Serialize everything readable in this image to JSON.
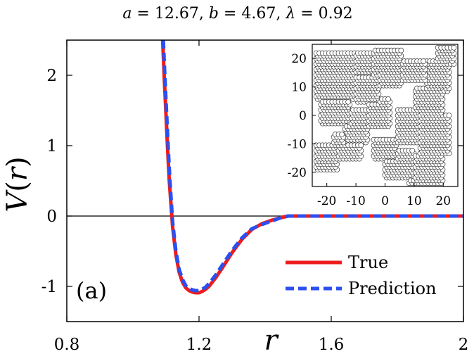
{
  "chart_data": [
    {
      "type": "line",
      "title": "a = 12.67, b = 4.67, λ = 0.92",
      "title_parts": {
        "a_sym": "a",
        "a_val": " = 12.67, ",
        "b_sym": "b",
        "b_val": " = 4.67, ",
        "l_sym": "λ",
        "l_val": " = 0.92"
      },
      "xlabel": "r",
      "ylabel": "V(r)",
      "ylabel_parts": {
        "v": "V",
        "open": "(",
        "r": "r",
        "close": ")"
      },
      "xlim": [
        0.8,
        2.0
      ],
      "ylim": [
        -1.5,
        2.5
      ],
      "x_ticks": [
        0.8,
        1.2,
        1.6,
        2.0
      ],
      "x_tick_labels": [
        "0.8",
        "1.2",
        "1.6",
        "2"
      ],
      "y_ticks": [
        -1,
        0,
        1,
        2
      ],
      "y_tick_labels": [
        "-1",
        "0",
        "1",
        "2"
      ],
      "zero_line": true,
      "grid": false,
      "panel_label": "(a)",
      "legend_position": "bottom-right",
      "series": [
        {
          "name": "True",
          "color": "#ee1c1c",
          "style": "solid",
          "x": [
            1.09,
            1.095,
            1.1,
            1.105,
            1.11,
            1.12,
            1.13,
            1.14,
            1.15,
            1.16,
            1.17,
            1.18,
            1.19,
            1.2,
            1.21,
            1.22,
            1.23,
            1.25,
            1.27,
            1.3,
            1.33,
            1.36,
            1.39,
            1.42,
            1.45,
            1.47,
            1.5,
            1.6,
            1.7,
            1.8,
            1.9,
            2.0
          ],
          "y": [
            2.5,
            1.95,
            1.45,
            0.95,
            0.5,
            -0.15,
            -0.55,
            -0.8,
            -0.94,
            -1.02,
            -1.06,
            -1.08,
            -1.09,
            -1.09,
            -1.07,
            -1.04,
            -1.0,
            -0.88,
            -0.74,
            -0.52,
            -0.33,
            -0.19,
            -0.11,
            -0.06,
            -0.02,
            0.0,
            0.0,
            0.0,
            0.0,
            0.0,
            0.0,
            0.0
          ]
        },
        {
          "name": "Prediction",
          "color": "#2b4ff0",
          "style": "dashed",
          "x": [
            1.092,
            1.097,
            1.102,
            1.107,
            1.112,
            1.12,
            1.13,
            1.14,
            1.15,
            1.16,
            1.17,
            1.18,
            1.19,
            1.2,
            1.21,
            1.22,
            1.23,
            1.25,
            1.27,
            1.3,
            1.33,
            1.36,
            1.39,
            1.42,
            1.45,
            1.47,
            1.5,
            1.6,
            1.7,
            1.8,
            1.9,
            2.0
          ],
          "y": [
            2.5,
            1.95,
            1.45,
            0.95,
            0.5,
            -0.08,
            -0.5,
            -0.76,
            -0.9,
            -0.99,
            -1.03,
            -1.05,
            -1.06,
            -1.06,
            -1.04,
            -1.01,
            -0.96,
            -0.84,
            -0.7,
            -0.49,
            -0.31,
            -0.18,
            -0.12,
            -0.07,
            -0.02,
            0.0,
            0.0,
            0.0,
            0.0,
            0.0,
            0.0,
            0.0
          ]
        }
      ]
    },
    {
      "type": "scatter",
      "xlim": [
        -25,
        25
      ],
      "ylim": [
        -25,
        25
      ],
      "x_ticks": [
        -20,
        -10,
        0,
        10,
        20
      ],
      "x_tick_labels": [
        "-20",
        "-10",
        "0",
        "10",
        "20"
      ],
      "y_ticks": [
        -20,
        -10,
        0,
        10,
        20
      ],
      "y_tick_labels": [
        "-20",
        "-10",
        "0",
        "10",
        "20"
      ],
      "particle_radius": 0.55,
      "lattice_spacing": 1.1,
      "clusters": [
        {
          "x": [
            -24,
            -10
          ],
          "y": [
            5,
            22
          ]
        },
        {
          "x": [
            -22,
            -12
          ],
          "y": [
            -3,
            8
          ]
        },
        {
          "x": [
            -14,
            -4
          ],
          "y": [
            14,
            22
          ]
        },
        {
          "x": [
            -10,
            -2
          ],
          "y": [
            4,
            16
          ]
        },
        {
          "x": [
            -4,
            6
          ],
          "y": [
            10,
            23
          ]
        },
        {
          "x": [
            -14,
            -6
          ],
          "y": [
            -10,
            2
          ]
        },
        {
          "x": [
            -6,
            2
          ],
          "y": [
            -4,
            6
          ]
        },
        {
          "x": [
            -24,
            -16
          ],
          "y": [
            -20,
            -10
          ]
        },
        {
          "x": [
            -18,
            -8
          ],
          "y": [
            -16,
            -6
          ]
        },
        {
          "x": [
            -4,
            4
          ],
          "y": [
            -16,
            -8
          ]
        },
        {
          "x": [
            0,
            10
          ],
          "y": [
            -22,
            -12
          ]
        },
        {
          "x": [
            4,
            12
          ],
          "y": [
            -10,
            2
          ]
        },
        {
          "x": [
            8,
            20
          ],
          "y": [
            -24,
            -14
          ]
        },
        {
          "x": [
            12,
            22
          ],
          "y": [
            -14,
            0
          ]
        },
        {
          "x": [
            10,
            20
          ],
          "y": [
            0,
            10
          ]
        },
        {
          "x": [
            14,
            22
          ],
          "y": [
            8,
            20
          ]
        },
        {
          "x": [
            18,
            24
          ],
          "y": [
            18,
            24
          ]
        },
        {
          "x": [
            6,
            14
          ],
          "y": [
            12,
            20
          ]
        }
      ]
    }
  ]
}
